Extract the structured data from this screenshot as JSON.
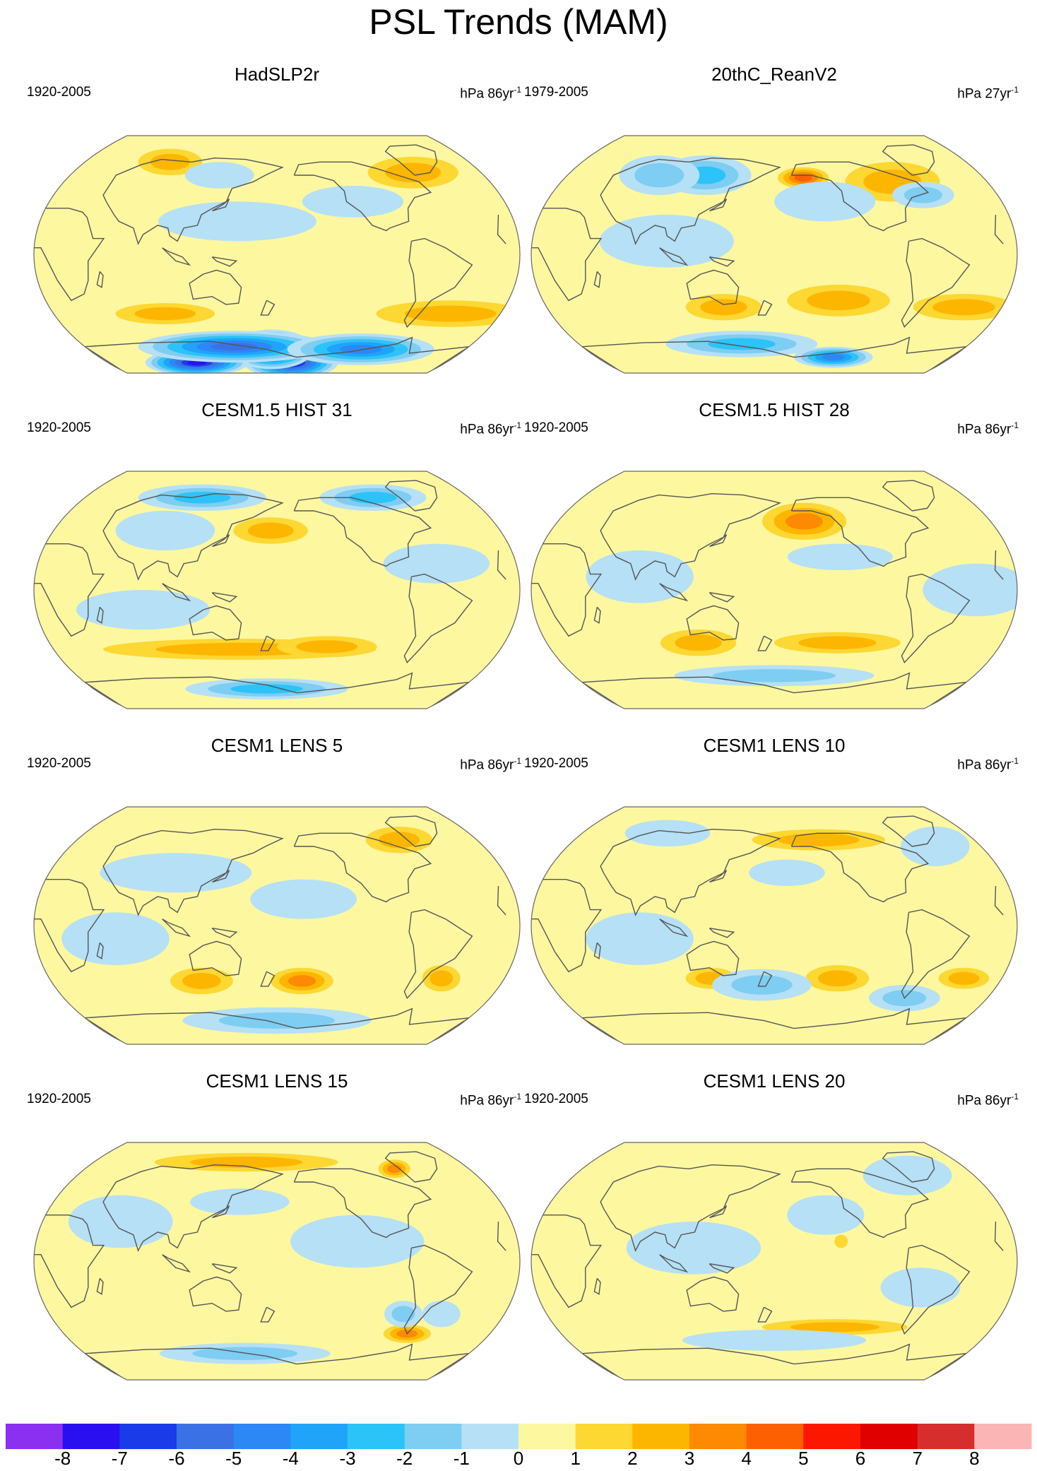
{
  "title": "PSL Trends (MAM)",
  "chart_data": [
    {
      "type": "heatmap",
      "title": "HadSLP2r",
      "period": "1920-2005",
      "units": "hPa 86yr",
      "units_exp": "-1",
      "projection": "robinson-like",
      "center_lon": 180,
      "anomalies": [
        {
          "lon": 195,
          "lat": -82,
          "value": -8,
          "rx": 50,
          "ry": 12
        },
        {
          "lon": 175,
          "lat": -72,
          "value": -8,
          "rx": 40,
          "ry": 15
        },
        {
          "lon": 95,
          "lat": -82,
          "value": -8,
          "rx": 55,
          "ry": 10
        },
        {
          "lon": 140,
          "lat": -70,
          "value": -6,
          "rx": 90,
          "ry": 12
        },
        {
          "lon": 260,
          "lat": -72,
          "value": -5,
          "rx": 70,
          "ry": 12
        },
        {
          "lon": 320,
          "lat": -45,
          "value": 2,
          "rx": 60,
          "ry": 10
        },
        {
          "lon": 90,
          "lat": -45,
          "value": 2,
          "rx": 40,
          "ry": 8
        },
        {
          "lon": 300,
          "lat": 62,
          "value": 2,
          "rx": 40,
          "ry": 12
        },
        {
          "lon": 80,
          "lat": 70,
          "value": 2,
          "rx": 30,
          "ry": 10
        },
        {
          "lon": 150,
          "lat": 25,
          "value": -1,
          "rx": 60,
          "ry": 15
        },
        {
          "lon": 130,
          "lat": 60,
          "value": -1,
          "rx": 30,
          "ry": 10
        },
        {
          "lon": 240,
          "lat": 40,
          "value": -1,
          "rx": 40,
          "ry": 12
        }
      ]
    },
    {
      "type": "heatmap",
      "title": "20thC_ReanV2",
      "period": "1979-2005",
      "units": "hPa 27yr",
      "units_exp": "-1",
      "projection": "robinson-like",
      "center_lon": 180,
      "anomalies": [
        {
          "lon": 205,
          "lat": 58,
          "value": 4,
          "rx": 22,
          "ry": 8
        },
        {
          "lon": 280,
          "lat": 55,
          "value": 2,
          "rx": 40,
          "ry": 15
        },
        {
          "lon": 230,
          "lat": -35,
          "value": 2,
          "rx": 40,
          "ry": 12
        },
        {
          "lon": 330,
          "lat": -40,
          "value": 2,
          "rx": 40,
          "ry": 10
        },
        {
          "lon": 140,
          "lat": -40,
          "value": 2,
          "rx": 30,
          "ry": 10
        },
        {
          "lon": 240,
          "lat": -78,
          "value": -5,
          "rx": 40,
          "ry": 8
        },
        {
          "lon": 150,
          "lat": -68,
          "value": -3,
          "rx": 70,
          "ry": 10
        },
        {
          "lon": 120,
          "lat": 60,
          "value": -3,
          "rx": 40,
          "ry": 15
        },
        {
          "lon": 80,
          "lat": 60,
          "value": -2,
          "rx": 35,
          "ry": 15
        },
        {
          "lon": 300,
          "lat": 45,
          "value": -2,
          "rx": 25,
          "ry": 10
        },
        {
          "lon": 220,
          "lat": 40,
          "value": -1,
          "rx": 40,
          "ry": 15
        },
        {
          "lon": 100,
          "lat": 10,
          "value": -1,
          "rx": 50,
          "ry": 20
        }
      ]
    },
    {
      "type": "heatmap",
      "title": "CESM1.5 HIST 31",
      "period": "1920-2005",
      "units": "hPa 86yr",
      "units_exp": "-1",
      "projection": "robinson-like",
      "center_lon": 180,
      "anomalies": [
        {
          "lon": 175,
          "lat": 45,
          "value": 2,
          "rx": 30,
          "ry": 10
        },
        {
          "lon": 150,
          "lat": -45,
          "value": 2,
          "rx": 110,
          "ry": 8
        },
        {
          "lon": 220,
          "lat": -43,
          "value": 2,
          "rx": 40,
          "ry": 8
        },
        {
          "lon": 170,
          "lat": -75,
          "value": -3,
          "rx": 80,
          "ry": 8
        },
        {
          "lon": 110,
          "lat": 70,
          "value": -3,
          "rx": 60,
          "ry": 10
        },
        {
          "lon": 270,
          "lat": 70,
          "value": -3,
          "rx": 50,
          "ry": 10
        },
        {
          "lon": 90,
          "lat": 45,
          "value": -1,
          "rx": 40,
          "ry": 15
        },
        {
          "lon": 300,
          "lat": 20,
          "value": -1,
          "rx": 40,
          "ry": 15
        },
        {
          "lon": 80,
          "lat": -15,
          "value": -1,
          "rx": 50,
          "ry": 15
        }
      ]
    },
    {
      "type": "heatmap",
      "title": "CESM1.5 HIST 28",
      "period": "1920-2005",
      "units": "hPa 86yr",
      "units_exp": "-1",
      "projection": "robinson-like",
      "center_lon": 180,
      "anomalies": [
        {
          "lon": 205,
          "lat": 55,
          "value": 5,
          "rx": 22,
          "ry": 10
        },
        {
          "lon": 205,
          "lat": 52,
          "value": 3,
          "rx": 35,
          "ry": 14
        },
        {
          "lon": 120,
          "lat": -40,
          "value": 2,
          "rx": 30,
          "ry": 10
        },
        {
          "lon": 230,
          "lat": -40,
          "value": 2,
          "rx": 50,
          "ry": 8
        },
        {
          "lon": 180,
          "lat": -65,
          "value": -2,
          "rx": 90,
          "ry": 8
        },
        {
          "lon": 230,
          "lat": 25,
          "value": -1,
          "rx": 40,
          "ry": 10
        },
        {
          "lon": 80,
          "lat": 10,
          "value": -1,
          "rx": 40,
          "ry": 20
        },
        {
          "lon": 330,
          "lat": 0,
          "value": -1,
          "rx": 40,
          "ry": 20
        }
      ]
    },
    {
      "type": "heatmap",
      "title": "CESM1 LENS 5",
      "period": "1920-2005",
      "units": "hPa 86yr",
      "units_exp": "-1",
      "projection": "robinson-like",
      "center_lon": 180,
      "anomalies": [
        {
          "lon": 120,
          "lat": -42,
          "value": 2,
          "rx": 25,
          "ry": 10
        },
        {
          "lon": 200,
          "lat": -42,
          "value": 3,
          "rx": 25,
          "ry": 10
        },
        {
          "lon": 310,
          "lat": -40,
          "value": 2,
          "rx": 15,
          "ry": 10
        },
        {
          "lon": 290,
          "lat": 65,
          "value": 2,
          "rx": 30,
          "ry": 10
        },
        {
          "lon": 180,
          "lat": -72,
          "value": -2,
          "rx": 90,
          "ry": 10
        },
        {
          "lon": 100,
          "lat": 40,
          "value": -1,
          "rx": 60,
          "ry": 15
        },
        {
          "lon": 200,
          "lat": 20,
          "value": -1,
          "rx": 40,
          "ry": 15
        },
        {
          "lon": 60,
          "lat": -10,
          "value": -1,
          "rx": 40,
          "ry": 20
        }
      ]
    },
    {
      "type": "heatmap",
      "title": "CESM1 LENS 10",
      "period": "1920-2005",
      "units": "hPa 86yr",
      "units_exp": "-1",
      "projection": "robinson-like",
      "center_lon": 180,
      "anomalies": [
        {
          "lon": 220,
          "lat": 65,
          "value": 2,
          "rx": 60,
          "ry": 8
        },
        {
          "lon": 230,
          "lat": -40,
          "value": 2,
          "rx": 25,
          "ry": 10
        },
        {
          "lon": 130,
          "lat": -40,
          "value": 2,
          "rx": 20,
          "ry": 8
        },
        {
          "lon": 330,
          "lat": -40,
          "value": 2,
          "rx": 20,
          "ry": 8
        },
        {
          "lon": 170,
          "lat": -45,
          "value": -2,
          "rx": 40,
          "ry": 12
        },
        {
          "lon": 290,
          "lat": -55,
          "value": -2,
          "rx": 30,
          "ry": 10
        },
        {
          "lon": 190,
          "lat": 40,
          "value": -1,
          "rx": 30,
          "ry": 10
        },
        {
          "lon": 80,
          "lat": 70,
          "value": -1,
          "rx": 40,
          "ry": 10
        },
        {
          "lon": 320,
          "lat": 60,
          "value": -1,
          "rx": 30,
          "ry": 15
        },
        {
          "lon": 80,
          "lat": -10,
          "value": -1,
          "rx": 40,
          "ry": 20
        }
      ]
    },
    {
      "type": "heatmap",
      "title": "CESM1 LENS 15",
      "period": "1920-2005",
      "units": "hPa 86yr",
      "units_exp": "-1",
      "projection": "robinson-like",
      "center_lon": 180,
      "anomalies": [
        {
          "lon": 150,
          "lat": 75,
          "value": 2,
          "rx": 90,
          "ry": 7
        },
        {
          "lon": 290,
          "lat": 70,
          "value": 3,
          "rx": 15,
          "ry": 7
        },
        {
          "lon": 290,
          "lat": -55,
          "value": 3,
          "rx": 20,
          "ry": 7
        },
        {
          "lon": 280,
          "lat": -40,
          "value": -2,
          "rx": 15,
          "ry": 10
        },
        {
          "lon": 310,
          "lat": -40,
          "value": -1,
          "rx": 15,
          "ry": 10
        },
        {
          "lon": 150,
          "lat": -70,
          "value": -2,
          "rx": 80,
          "ry": 8
        },
        {
          "lon": 240,
          "lat": 15,
          "value": -1,
          "rx": 50,
          "ry": 20
        },
        {
          "lon": 150,
          "lat": 45,
          "value": -1,
          "rx": 40,
          "ry": 10
        },
        {
          "lon": 60,
          "lat": 30,
          "value": -1,
          "rx": 40,
          "ry": 20
        }
      ]
    },
    {
      "type": "heatmap",
      "title": "CESM1 LENS 20",
      "period": "1920-2005",
      "units": "hPa 86yr",
      "units_exp": "-1",
      "projection": "robinson-like",
      "center_lon": 180,
      "anomalies": [
        {
          "lon": 230,
          "lat": -50,
          "value": 2,
          "rx": 60,
          "ry": 6
        },
        {
          "lon": 230,
          "lat": 15,
          "value": 1,
          "rx": 5,
          "ry": 5
        },
        {
          "lon": 300,
          "lat": 65,
          "value": -1,
          "rx": 40,
          "ry": 15
        },
        {
          "lon": 220,
          "lat": 35,
          "value": -1,
          "rx": 30,
          "ry": 15
        },
        {
          "lon": 120,
          "lat": 10,
          "value": -1,
          "rx": 50,
          "ry": 20
        },
        {
          "lon": 290,
          "lat": -20,
          "value": -1,
          "rx": 30,
          "ry": 15
        },
        {
          "lon": 180,
          "lat": -60,
          "value": -1,
          "rx": 80,
          "ry": 8
        }
      ]
    }
  ],
  "colorbar": {
    "colors": [
      "#8b2ff0",
      "#2a10f0",
      "#1a3be8",
      "#3a72e6",
      "#2b88f5",
      "#1fa4fa",
      "#2cc3f8",
      "#7ecdf2",
      "#b5e0f5",
      "#fdf7a0",
      "#fdd732",
      "#fdb600",
      "#fd8a00",
      "#fc6000",
      "#fc1800",
      "#e00000",
      "#d62d2d",
      "#fcb5b5"
    ],
    "labels": [
      "-8",
      "-7",
      "-6",
      "-5",
      "-4",
      "-3",
      "-2",
      "-1",
      "0",
      "1",
      "2",
      "3",
      "4",
      "5",
      "6",
      "7",
      "8"
    ],
    "boundaries": [
      -8,
      -7,
      -6,
      -5,
      -4,
      -3,
      -2,
      -1,
      0,
      1,
      2,
      3,
      4,
      5,
      6,
      7,
      8
    ]
  },
  "colors": {
    "land_outline": "#555555",
    "frame": "#666666"
  }
}
